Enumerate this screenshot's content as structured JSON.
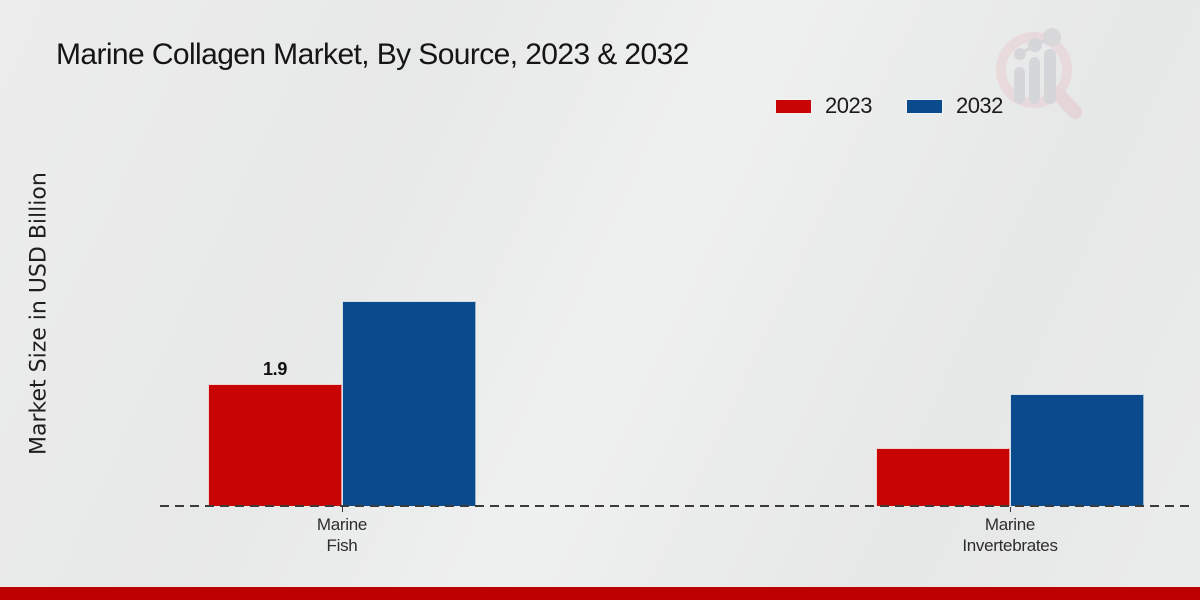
{
  "page": {
    "title": "Marine Collagen Market, By Source, 2023 & 2032",
    "ylabel": "Market Size in USD Billion"
  },
  "legend": {
    "items": [
      {
        "label": "2023",
        "color": "#c90404"
      },
      {
        "label": "2032",
        "color": "#0a4b8e"
      }
    ]
  },
  "watermark": {
    "icon": "magnifier-growth-chart-logo"
  },
  "footer": {
    "accent_color": "#bd0101"
  },
  "chart_data": {
    "type": "bar",
    "title": "Marine Collagen Market, By Source, 2023 & 2032",
    "xlabel": "",
    "ylabel": "Market Size in USD Billion",
    "categories": [
      "Marine Fish",
      "Marine Invertebrates"
    ],
    "series": [
      {
        "name": "2023",
        "color": "#c90404",
        "values": [
          1.9,
          0.9
        ]
      },
      {
        "name": "2032",
        "color": "#0a4b8e",
        "values": [
          3.2,
          1.75
        ]
      }
    ],
    "value_labels": [
      {
        "series": "2023",
        "category": "Marine Fish",
        "text": "1.9"
      }
    ],
    "ylim": [
      0,
      3.5
    ],
    "grid": false,
    "legend_position": "top-right",
    "baseline_style": "dashed"
  }
}
